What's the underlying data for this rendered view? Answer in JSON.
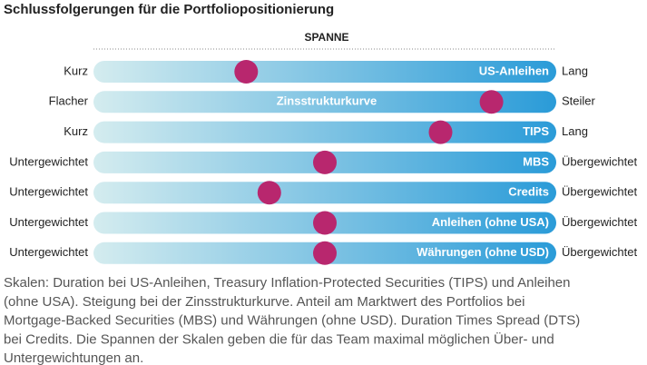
{
  "chart_data": {
    "type": "range_dots",
    "title": "Schlussfolgerungen für die Portfoliopositionierung",
    "header": "SPANNE",
    "xlim": [
      0,
      100
    ],
    "dot_color": "#b8276e",
    "bar_colors": [
      "#d4ecef",
      "#2a9bd8"
    ],
    "rows": [
      {
        "left": "Kurz",
        "label": "US-Anleihen",
        "right": "Lang",
        "value": 33
      },
      {
        "left": "Flacher",
        "label": "Zinsstrukturkurve",
        "right": "Steiler",
        "value": 86
      },
      {
        "left": "Kurz",
        "label": "TIPS",
        "right": "Lang",
        "value": 75
      },
      {
        "left": "Untergewichtet",
        "label": "MBS",
        "right": "Übergewichtet",
        "value": 50
      },
      {
        "left": "Untergewichtet",
        "label": "Credits",
        "right": "Übergewichtet",
        "value": 38
      },
      {
        "left": "Untergewichtet",
        "label": "Anleihen (ohne USA)",
        "right": "Übergewichtet",
        "value": 50
      },
      {
        "left": "Untergewichtet",
        "label": "Währungen (ohne USD)",
        "right": "Übergewichtet",
        "value": 50
      }
    ],
    "footnote": [
      "Skalen: Duration bei US-Anleihen, Treasury Inflation-Protected Securities (TIPS) und Anleihen",
      "(ohne USA). Steigung bei der Zinsstrukturkurve. Anteil am Marktwert des Portfolios bei",
      "Mortgage-Backed Securities (MBS) und Währungen (ohne USD). Duration Times Spread (DTS)",
      "bei Credits. Die Spannen der Skalen geben die für das Team maximal möglichen Über- und",
      "Untergewichtungen an."
    ]
  }
}
